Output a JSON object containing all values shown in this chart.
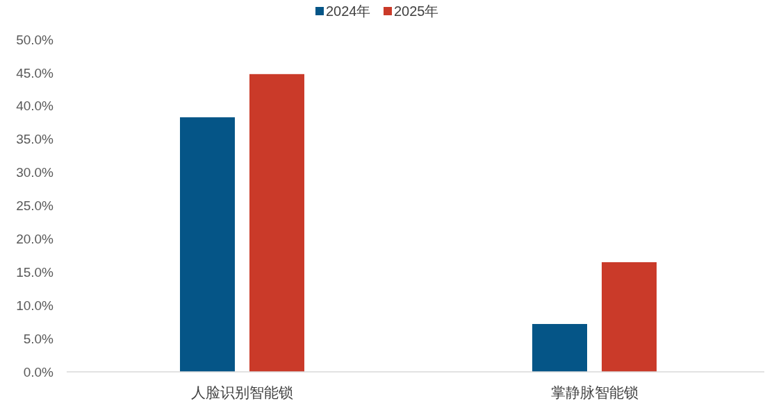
{
  "chart_data": {
    "type": "bar",
    "categories": [
      "人脸识别智能锁",
      "掌静脉智能锁"
    ],
    "series": [
      {
        "name": "2024年",
        "color": "#055587",
        "values": [
          38.3,
          7.2
        ]
      },
      {
        "name": "2025年",
        "color": "#ca3a29",
        "values": [
          44.8,
          16.5
        ]
      }
    ],
    "ylim": [
      0,
      50
    ],
    "yticks": [
      {
        "value": 0,
        "label": "0.0%"
      },
      {
        "value": 5,
        "label": "5.0%"
      },
      {
        "value": 10,
        "label": "10.0%"
      },
      {
        "value": 15,
        "label": "15.0%"
      },
      {
        "value": 20,
        "label": "20.0%"
      },
      {
        "value": 25,
        "label": "25.0%"
      },
      {
        "value": 30,
        "label": "30.0%"
      },
      {
        "value": 35,
        "label": "35.0%"
      },
      {
        "value": 40,
        "label": "40.0%"
      },
      {
        "value": 45,
        "label": "45.0%"
      },
      {
        "value": 50,
        "label": "50.0%"
      }
    ],
    "legend": "top"
  }
}
